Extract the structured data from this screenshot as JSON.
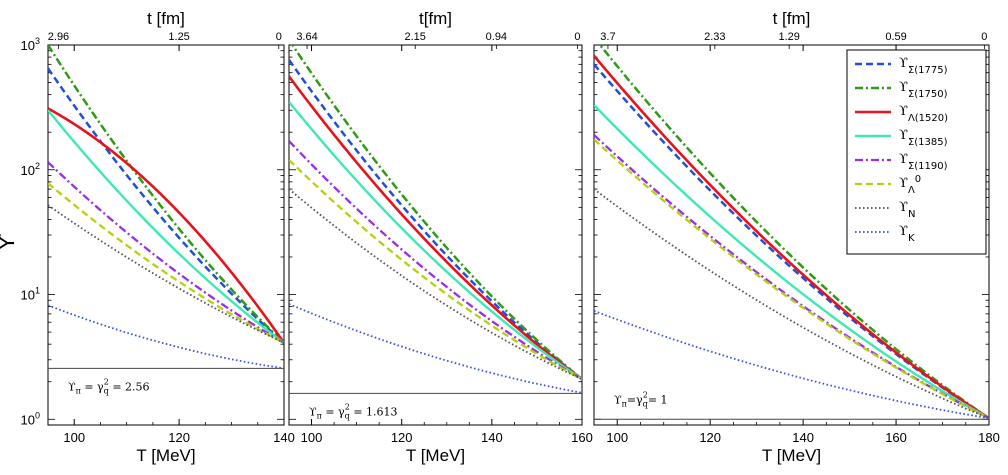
{
  "chart_data": {
    "type": "line",
    "y_axis": {
      "label": "ϒ",
      "scale": "log",
      "ylim": [
        0.9,
        1000
      ],
      "major_ticks": [
        {
          "value": 1,
          "base": "10",
          "exp": "0"
        },
        {
          "value": 10,
          "base": "10",
          "exp": "1"
        },
        {
          "value": 100,
          "base": "10",
          "exp": "2"
        },
        {
          "value": 1000,
          "base": "10",
          "exp": "3"
        }
      ]
    },
    "legend": {
      "position": "top-right",
      "entries": [
        {
          "sym": "ϒ",
          "sub": "Σ(1775)",
          "sup": "",
          "color": "#1f4fdc",
          "dash": "7,4",
          "width": 2.5
        },
        {
          "sym": "ϒ",
          "sub": "Σ(1750)",
          "sup": "",
          "color": "#2e9a16",
          "dash": "8,3,2,3",
          "width": 2.5
        },
        {
          "sym": "ϒ",
          "sub": "Λ(1520)",
          "sup": "",
          "color": "#e8121c",
          "dash": "",
          "width": 2.6
        },
        {
          "sym": "ϒ",
          "sub": "Σ(1385)",
          "sup": "",
          "color": "#3ee8b4",
          "dash": "",
          "width": 2.4
        },
        {
          "sym": "ϒ",
          "sub": "Σ(1190)",
          "sup": "",
          "color": "#9a2ee6",
          "dash": "8,3,2,3",
          "width": 2.3
        },
        {
          "sym": "ϒ",
          "sub": "Λ",
          "sup": "0",
          "color": "#b5d10c",
          "dash": "7,4",
          "width": 2.3
        },
        {
          "sym": "ϒ",
          "sub": "N",
          "sup": "",
          "color": "#555555",
          "dash": "1.6,2.4",
          "width": 1.8
        },
        {
          "sym": "ϒ",
          "sub": "K",
          "sup": "",
          "color": "#3a55e0",
          "dash": "1.6,2.4",
          "width": 1.8
        }
      ]
    },
    "panels": [
      {
        "xlabel": "T [MeV]",
        "top_xlabel": "t [fm]",
        "xlim": [
          95,
          140
        ],
        "x_ticks": [
          100,
          120,
          140
        ],
        "top_ticks": [
          {
            "T": 97,
            "label": "2.96"
          },
          {
            "T": 120,
            "label": "1.25"
          },
          {
            "T": 139,
            "label": "0"
          }
        ],
        "annotation": {
          "lead": "ϒ",
          "sub1": "π",
          "mid": " = γ",
          "sub2": "q",
          "sup": "2",
          "tail": " = 2.56"
        },
        "series": [
          {
            "name": "ϒΣ(1775)",
            "x": [
              95,
              140
            ],
            "y": [
              650,
              4.1
            ],
            "curv": 0.25
          },
          {
            "name": "ϒΣ(1750)",
            "x": [
              95,
              140
            ],
            "y": [
              1000,
              4.1
            ],
            "curv": 0.25
          },
          {
            "name": "ϒΛ(1520)",
            "x": [
              95,
              140
            ],
            "y": [
              310,
              4.1
            ],
            "curv": -0.45
          },
          {
            "name": "ϒΣ(1385)",
            "x": [
              95,
              140
            ],
            "y": [
              300,
              4.1
            ],
            "curv": 0.25
          },
          {
            "name": "ϒΣ(1190)",
            "x": [
              95,
              140
            ],
            "y": [
              115,
              4.1
            ],
            "curv": 0.25
          },
          {
            "name": "ϒΛ0",
            "x": [
              95,
              140
            ],
            "y": [
              78,
              4.1
            ],
            "curv": 0.25
          },
          {
            "name": "ϒN",
            "x": [
              95,
              140
            ],
            "y": [
              52,
              4.1
            ],
            "curv": 0.2
          },
          {
            "name": "ϒK",
            "x": [
              95,
              140
            ],
            "y": [
              8.2,
              2.56
            ],
            "curv": 0.45
          },
          {
            "name": "ϒπ",
            "x": [
              95,
              140
            ],
            "y": [
              2.56,
              2.56
            ],
            "curv": 0
          }
        ]
      },
      {
        "xlabel": "T [MeV]",
        "top_xlabel": "t[fm]",
        "xlim": [
          95,
          160
        ],
        "x_ticks": [
          100,
          120,
          140,
          160
        ],
        "top_ticks": [
          {
            "T": 99,
            "label": "3.64"
          },
          {
            "T": 123,
            "label": "2.15"
          },
          {
            "T": 141,
            "label": "0.94"
          },
          {
            "T": 159,
            "label": "0"
          }
        ],
        "annotation": {
          "lead": "ϒ",
          "sub1": "π",
          "mid": " = γ",
          "sub2": "q",
          "sup": "2",
          "tail": " = 1.613"
        },
        "series": [
          {
            "name": "ϒΣ(1775)",
            "x": [
              95,
              160
            ],
            "y": [
              760,
              2.1
            ],
            "curv": 0.3
          },
          {
            "name": "ϒΣ(1750)",
            "x": [
              95,
              160
            ],
            "y": [
              1100,
              2.1
            ],
            "curv": 0.3
          },
          {
            "name": "ϒΛ(1520)",
            "x": [
              95,
              160
            ],
            "y": [
              560,
              2.1
            ],
            "curv": 0.3
          },
          {
            "name": "ϒΣ(1385)",
            "x": [
              95,
              160
            ],
            "y": [
              350,
              2.1
            ],
            "curv": 0.3
          },
          {
            "name": "ϒΣ(1190)",
            "x": [
              95,
              160
            ],
            "y": [
              170,
              2.1
            ],
            "curv": 0.3
          },
          {
            "name": "ϒΛ0",
            "x": [
              95,
              160
            ],
            "y": [
              120,
              2.1
            ],
            "curv": 0.3
          },
          {
            "name": "ϒN",
            "x": [
              95,
              160
            ],
            "y": [
              70,
              2.1
            ],
            "curv": 0.3
          },
          {
            "name": "ϒK",
            "x": [
              95,
              160
            ],
            "y": [
              8.4,
              1.63
            ],
            "curv": 0.4
          },
          {
            "name": "ϒπ",
            "x": [
              95,
              160
            ],
            "y": [
              1.613,
              1.613
            ],
            "curv": 0
          }
        ]
      },
      {
        "xlabel": "T [MeV]",
        "top_xlabel": "t [fm]",
        "xlim": [
          95,
          180
        ],
        "x_ticks": [
          100,
          120,
          140,
          160,
          180
        ],
        "top_ticks": [
          {
            "T": 98,
            "label": "3.7"
          },
          {
            "T": 121,
            "label": "2.33"
          },
          {
            "T": 137,
            "label": "1.29"
          },
          {
            "T": 160,
            "label": "0.59"
          },
          {
            "T": 179,
            "label": "0"
          }
        ],
        "annotation": {
          "lead": "ϒ",
          "sub1": "π",
          "mid": "=γ",
          "sub2": "q",
          "sup": "2",
          "tail": "= 1"
        },
        "series": [
          {
            "name": "ϒΣ(1775)",
            "x": [
              95,
              180
            ],
            "y": [
              700,
              1.02
            ],
            "curv": 0.3
          },
          {
            "name": "ϒΣ(1750)",
            "x": [
              95,
              180
            ],
            "y": [
              1150,
              1.02
            ],
            "curv": 0.3
          },
          {
            "name": "ϒΛ(1520)",
            "x": [
              95,
              180
            ],
            "y": [
              820,
              1.02
            ],
            "curv": 0.3
          },
          {
            "name": "ϒΣ(1385)",
            "x": [
              95,
              180
            ],
            "y": [
              330,
              1.02
            ],
            "curv": 0.3
          },
          {
            "name": "ϒΣ(1190)",
            "x": [
              95,
              180
            ],
            "y": [
              190,
              1.02
            ],
            "curv": 0.3
          },
          {
            "name": "ϒΛ0",
            "x": [
              95,
              180
            ],
            "y": [
              175,
              1.02
            ],
            "curv": 0.3
          },
          {
            "name": "ϒN",
            "x": [
              95,
              180
            ],
            "y": [
              70,
              1.02
            ],
            "curv": 0.3
          },
          {
            "name": "ϒK",
            "x": [
              95,
              180
            ],
            "y": [
              7.4,
              1.02
            ],
            "curv": 0.4
          },
          {
            "name": "ϒπ",
            "x": [
              95,
              180
            ],
            "y": [
              1,
              1
            ],
            "curv": 0
          }
        ]
      }
    ]
  }
}
